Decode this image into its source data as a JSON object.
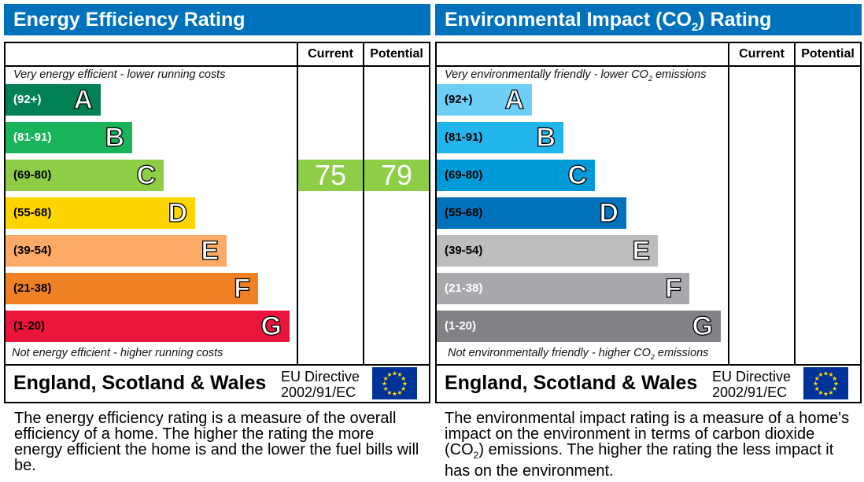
{
  "chart_data": [
    {
      "type": "bar",
      "title": "Energy Efficiency Rating",
      "columns": [
        "Current",
        "Potential"
      ],
      "top_note": "Very energy efficient - lower running costs",
      "bottom_note": "Not energy efficient - higher running costs",
      "bands": [
        {
          "letter": "A",
          "range": "(92+)",
          "color": "#008054",
          "text": "#fff"
        },
        {
          "letter": "B",
          "range": "(81-91)",
          "color": "#19b459",
          "text": "#fff"
        },
        {
          "letter": "C",
          "range": "(69-80)",
          "color": "#8dce46",
          "text": "#000"
        },
        {
          "letter": "D",
          "range": "(55-68)",
          "color": "#ffd500",
          "text": "#000"
        },
        {
          "letter": "E",
          "range": "(39-54)",
          "color": "#fcaa65",
          "text": "#000"
        },
        {
          "letter": "F",
          "range": "(21-38)",
          "color": "#ef8023",
          "text": "#000"
        },
        {
          "letter": "G",
          "range": "(1-20)",
          "color": "#e9153b",
          "text": "#000"
        }
      ],
      "current": {
        "value": 75,
        "band": "C"
      },
      "potential": {
        "value": 79,
        "band": "C"
      },
      "region": "England, Scotland & Wales",
      "directive": [
        "EU Directive",
        "2002/91/EC"
      ],
      "description": "The energy efficiency rating is a measure of the overall efficiency of a home. The higher the rating the more energy efficient the home is and the lower the fuel bills will be."
    },
    {
      "type": "bar",
      "title": "Environmental Impact (CO2) Rating",
      "columns": [
        "Current",
        "Potential"
      ],
      "top_note": "Very environmentally friendly - lower CO2 emissions",
      "bottom_note": "Not environmentally friendly - higher CO2 emissions",
      "bands": [
        {
          "letter": "A",
          "range": "(92+)",
          "color": "#6dcff6",
          "text": "#000"
        },
        {
          "letter": "B",
          "range": "(81-91)",
          "color": "#22b5ec",
          "text": "#000"
        },
        {
          "letter": "C",
          "range": "(69-80)",
          "color": "#009ad8",
          "text": "#000"
        },
        {
          "letter": "D",
          "range": "(55-68)",
          "color": "#0072bc",
          "text": "#000"
        },
        {
          "letter": "E",
          "range": "(39-54)",
          "color": "#bbbdbf",
          "text": "#000"
        },
        {
          "letter": "F",
          "range": "(21-38)",
          "color": "#a7a9ac",
          "text": "#fff"
        },
        {
          "letter": "G",
          "range": "(1-20)",
          "color": "#808285",
          "text": "#fff"
        }
      ],
      "current": null,
      "potential": null,
      "region": "England, Scotland & Wales",
      "directive": [
        "EU Directive",
        "2002/91/EC"
      ],
      "description": "The environmental impact rating is a measure of a home's impact on the environment in terms of carbon dioxide (CO2) emissions. The higher the rating the less impact it has on the environment."
    }
  ]
}
